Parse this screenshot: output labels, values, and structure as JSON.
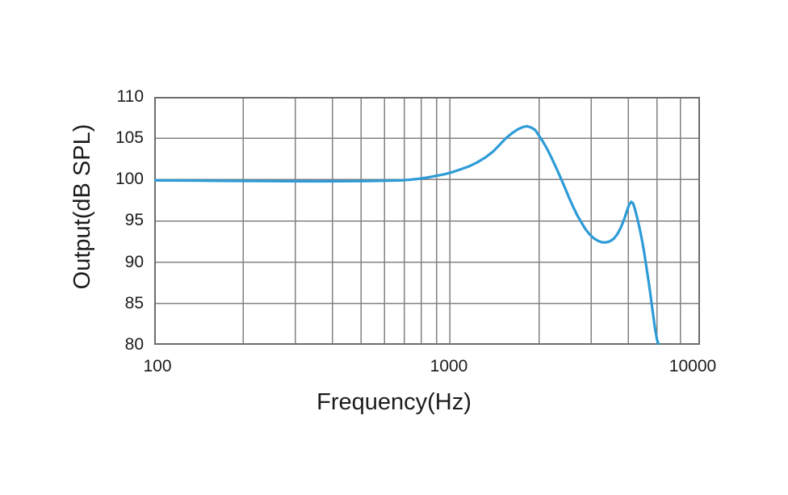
{
  "chart_data": {
    "type": "line",
    "title": "",
    "xlabel": "Frequency(Hz)",
    "ylabel": "Output(dB SPL)",
    "x_scale": "log",
    "x_tick_labels": [
      "100",
      "1000",
      "10000"
    ],
    "x_grid_hz": [
      100,
      200,
      300,
      400,
      500,
      600,
      700,
      800,
      900,
      1000,
      2000,
      3000,
      4000,
      5000,
      6000,
      7000
    ],
    "y_ticks": [
      110,
      105,
      100,
      95,
      90,
      85,
      80
    ],
    "ylim": [
      80,
      110
    ],
    "grid_on": true,
    "legend": "none",
    "line_color": "#2d9bd7",
    "grid_color": "#818181",
    "border_color": "#6d6d6d",
    "series": [
      {
        "name": "output-spl",
        "points": [
          [
            100,
            99.9
          ],
          [
            140,
            99.87
          ],
          [
            180,
            99.84
          ],
          [
            230,
            99.82
          ],
          [
            280,
            99.8
          ],
          [
            330,
            99.79
          ],
          [
            380,
            99.79
          ],
          [
            430,
            99.8
          ],
          [
            480,
            99.81
          ],
          [
            530,
            99.83
          ],
          [
            580,
            99.85
          ],
          [
            630,
            99.87
          ],
          [
            680,
            99.9
          ],
          [
            730,
            99.97
          ],
          [
            780,
            100.08
          ],
          [
            840,
            100.25
          ],
          [
            900,
            100.45
          ],
          [
            960,
            100.65
          ],
          [
            1020,
            100.9
          ],
          [
            1090,
            101.25
          ],
          [
            1160,
            101.6
          ],
          [
            1240,
            102.1
          ],
          [
            1320,
            102.7
          ],
          [
            1400,
            103.4
          ],
          [
            1480,
            104.3
          ],
          [
            1550,
            105.05
          ],
          [
            1620,
            105.6
          ],
          [
            1690,
            106.05
          ],
          [
            1760,
            106.35
          ],
          [
            1820,
            106.45
          ],
          [
            1880,
            106.3
          ],
          [
            1940,
            106.0
          ],
          [
            2000,
            105.3
          ],
          [
            2060,
            104.6
          ],
          [
            2130,
            103.7
          ],
          [
            2200,
            102.7
          ],
          [
            2280,
            101.5
          ],
          [
            2360,
            100.3
          ],
          [
            2440,
            99.1
          ],
          [
            2520,
            97.9
          ],
          [
            2600,
            96.8
          ],
          [
            2690,
            95.7
          ],
          [
            2780,
            94.8
          ],
          [
            2870,
            94.0
          ],
          [
            2960,
            93.4
          ],
          [
            3060,
            92.9
          ],
          [
            3160,
            92.6
          ],
          [
            3270,
            92.4
          ],
          [
            3380,
            92.4
          ],
          [
            3480,
            92.55
          ],
          [
            3580,
            92.85
          ],
          [
            3680,
            93.4
          ],
          [
            3780,
            94.2
          ],
          [
            3880,
            95.2
          ],
          [
            3970,
            96.3
          ],
          [
            4040,
            97.0
          ],
          [
            4100,
            97.3
          ],
          [
            4160,
            97.1
          ],
          [
            4220,
            96.4
          ],
          [
            4290,
            95.4
          ],
          [
            4370,
            94.2
          ],
          [
            4450,
            92.8
          ],
          [
            4530,
            91.2
          ],
          [
            4610,
            89.5
          ],
          [
            4690,
            87.7
          ],
          [
            4770,
            85.8
          ],
          [
            4850,
            83.9
          ],
          [
            4930,
            82.0
          ],
          [
            5010,
            80.6
          ],
          [
            5070,
            80.1
          ]
        ]
      }
    ]
  }
}
